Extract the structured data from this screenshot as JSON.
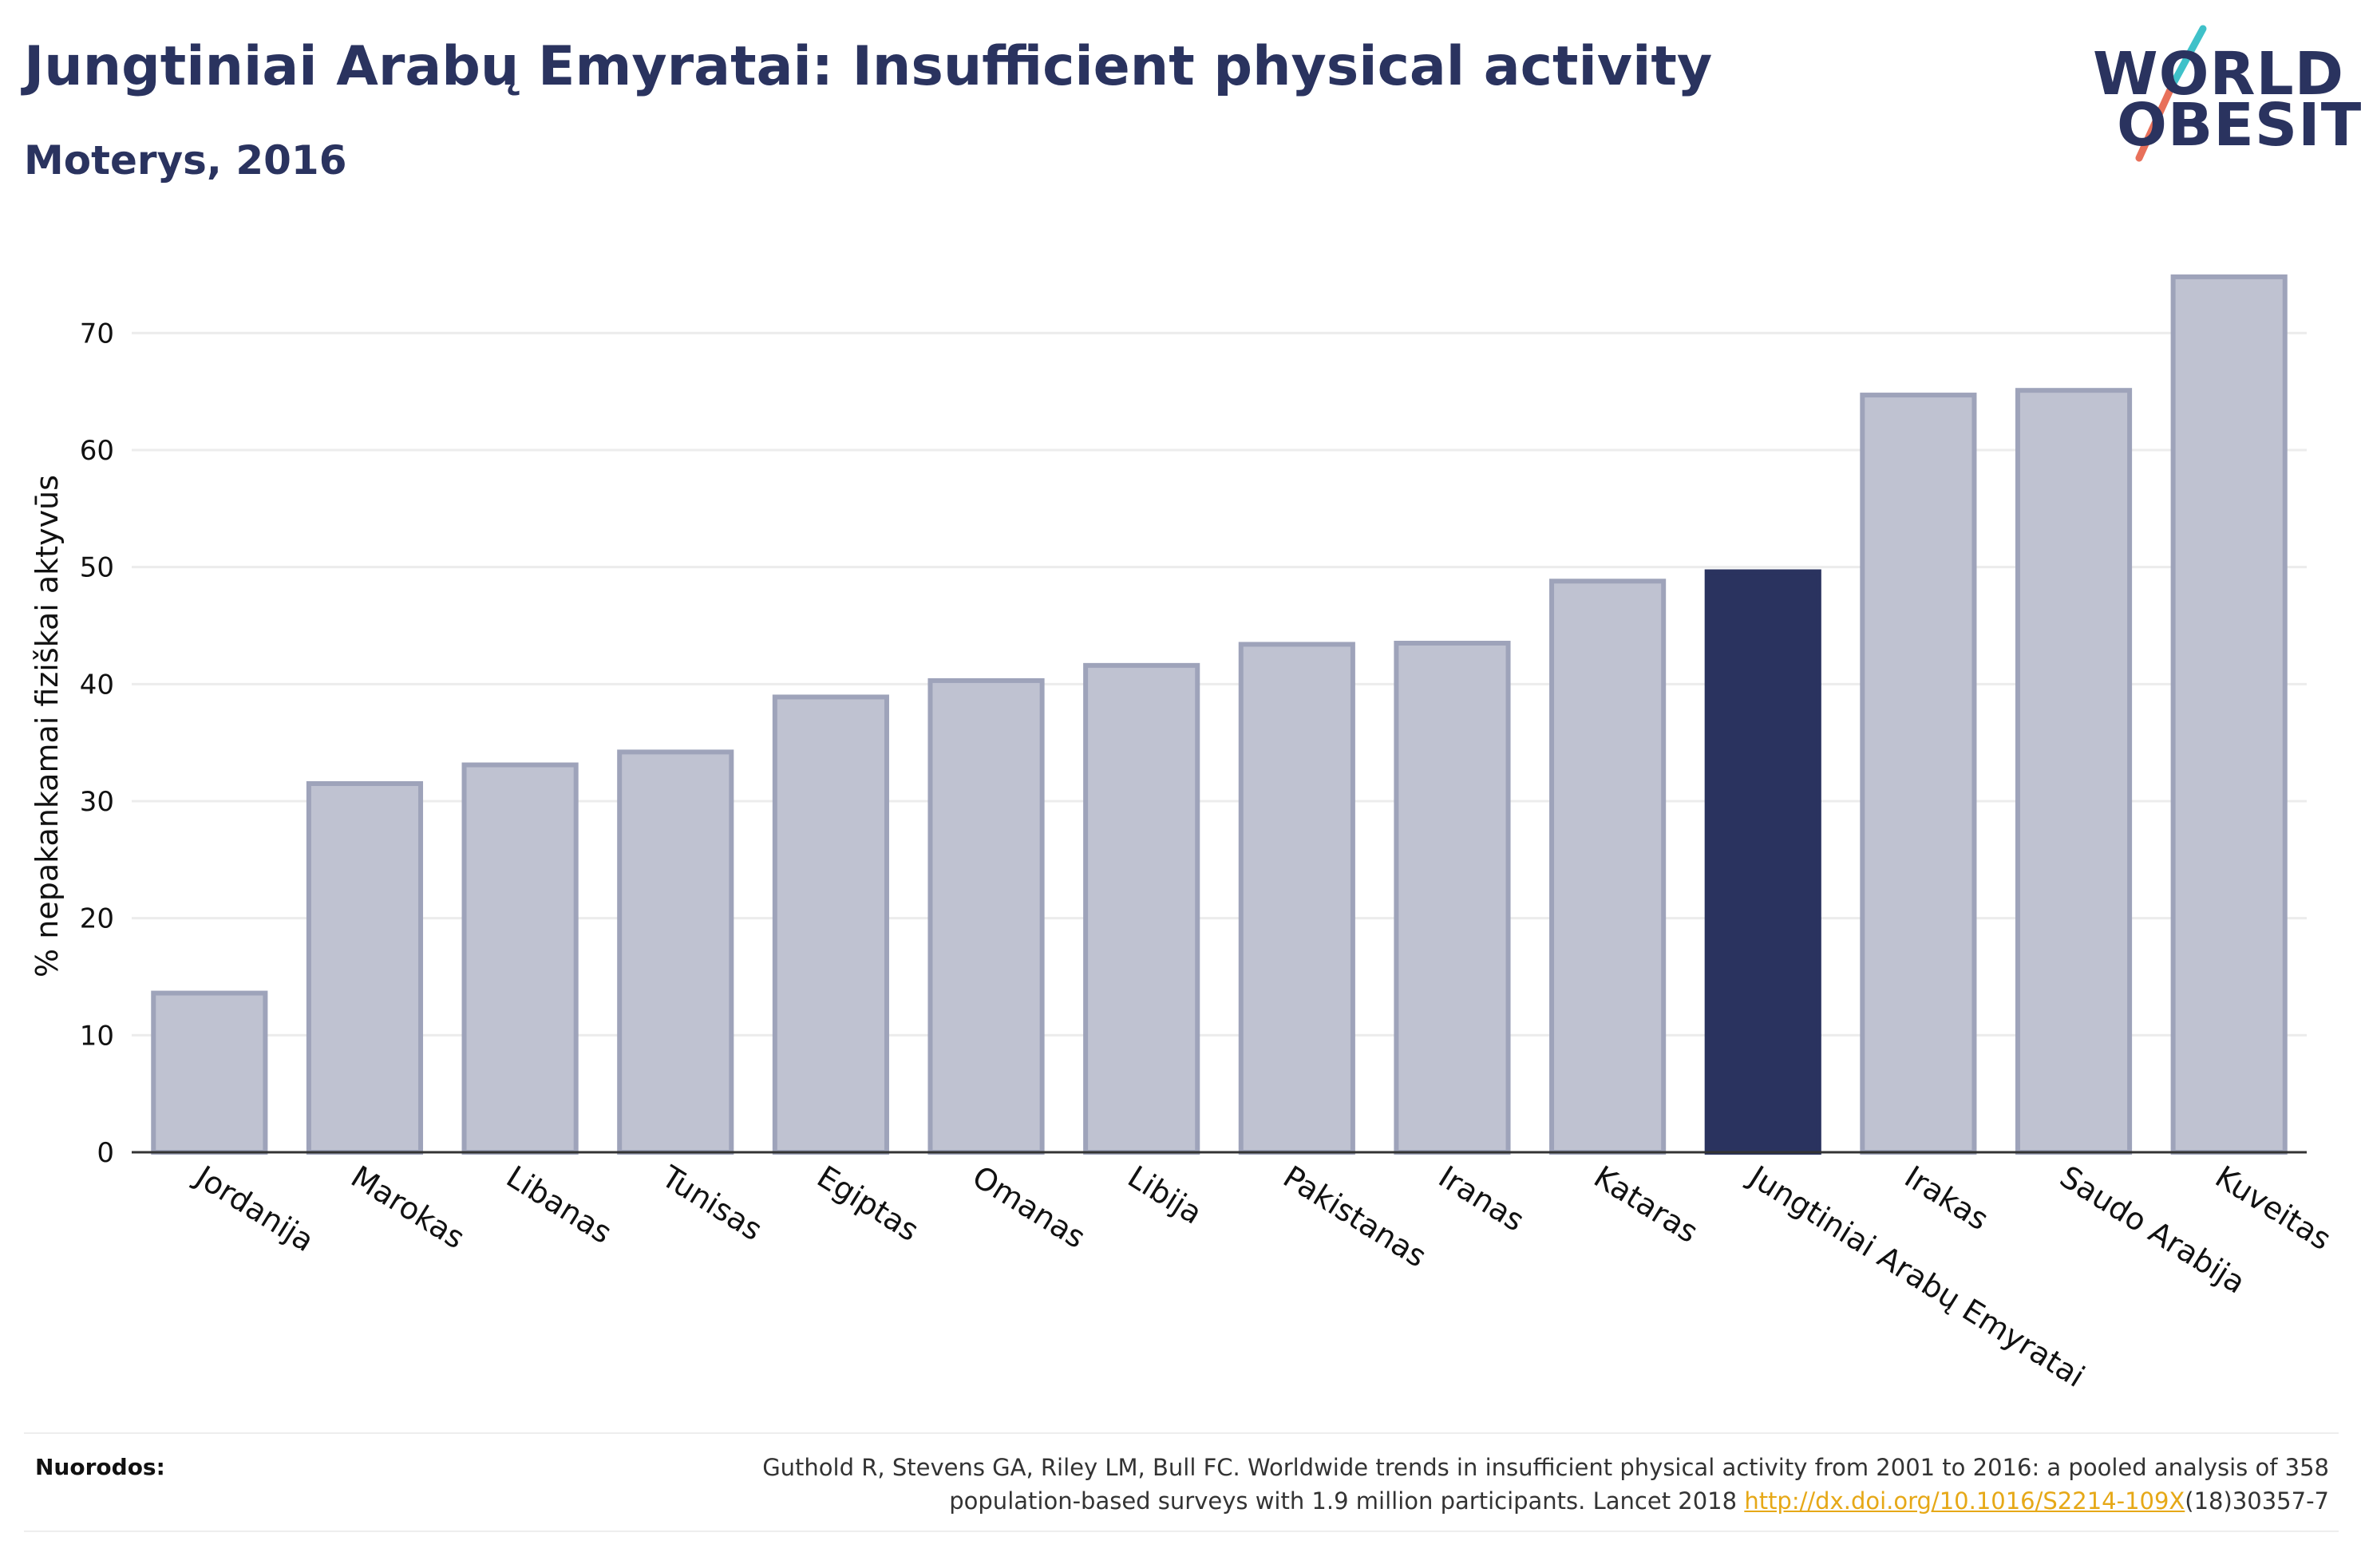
{
  "header": {
    "title": "Jungtiniai Arabų Emyratai: Insufficient physical activity",
    "subtitle": "Moterys, 2016"
  },
  "logo": {
    "line1": "WORLD",
    "line2": "OBESITY",
    "slash_colors": [
      "#3fc1c9",
      "#e8705a"
    ]
  },
  "chart_data": {
    "type": "bar",
    "categories": [
      "Jordanija",
      "Marokas",
      "Libanas",
      "Tunisas",
      "Egiptas",
      "Omanas",
      "Libija",
      "Pakistanas",
      "Iranas",
      "Kataras",
      "Jungtiniai Arabų Emyratai",
      "Irakas",
      "Saudo Arabija",
      "Kuveitas"
    ],
    "values": [
      13.6,
      31.5,
      33.1,
      34.2,
      38.9,
      40.3,
      41.6,
      43.4,
      43.5,
      48.8,
      49.6,
      64.7,
      65.1,
      74.8
    ],
    "highlight": "Jungtiniai Arabų Emyratai",
    "xlabel": "",
    "ylabel": "% nepakankamai fiziškai aktyvūs",
    "ylim": [
      0,
      78
    ],
    "yticks": [
      0,
      10,
      20,
      30,
      40,
      50,
      60,
      70
    ],
    "grid": true,
    "colors": {
      "bar": "#bfc2d1",
      "bar_border": "#9ea3ba",
      "highlight": "#2a335f",
      "grid": "#ececec",
      "axis": "#333333"
    }
  },
  "footer": {
    "label": "Nuorodos:",
    "citation_line1": "Guthold R, Stevens GA, Riley LM, Bull FC. Worldwide trends in insufficient physical activity from 2001 to 2016: a pooled analysis of 358",
    "citation_line2_pre": "population-based surveys with 1.9 million participants. Lancet 2018 ",
    "citation_link": "http://dx.doi.org/10.1016/S2214-109X",
    "citation_line2_post": "(18)30357-7"
  }
}
